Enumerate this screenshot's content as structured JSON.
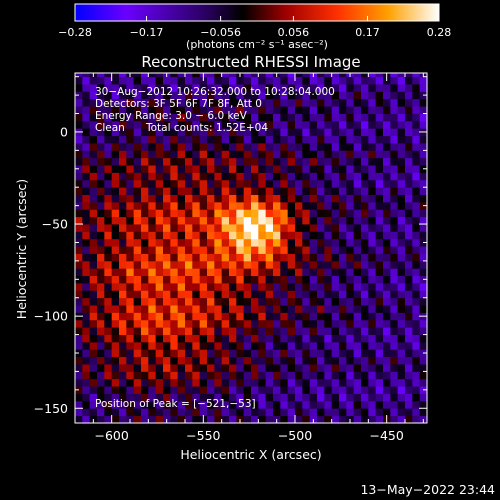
{
  "chart_data": {
    "type": "heatmap",
    "title": "Reconstructed RHESSI Image",
    "xlabel": "Heliocentric X (arcsec)",
    "ylabel": "Heliocentric Y (arcsec)",
    "xlim": [
      -620,
      -428
    ],
    "ylim": [
      -158,
      32
    ],
    "x_ticks": [
      -600,
      -550,
      -500,
      -450
    ],
    "x_tick_labels": [
      "−600",
      "−550",
      "−500",
      "−450"
    ],
    "y_ticks": [
      0,
      -50,
      -100,
      -150
    ],
    "y_tick_labels": [
      "0",
      "−50",
      "−100",
      "−150"
    ],
    "colorbar": {
      "min": -0.28,
      "max": 0.28,
      "ticks": [
        -0.28,
        -0.17,
        -0.056,
        0.056,
        0.17,
        0.28
      ],
      "tick_labels": [
        "−0.28",
        "−0.17",
        "−0.056",
        "0.056",
        "0.17",
        "0.28"
      ],
      "units_label": "(photons cm⁻² s⁻¹ asec⁻²)",
      "colors": [
        "#0000ff",
        "#6a00ff",
        "#2a0060",
        "#000000",
        "#a00000",
        "#ff3000",
        "#ffa000",
        "#ffffff"
      ]
    },
    "peak": {
      "x": -521,
      "y": -53,
      "amplitude": 0.28
    },
    "grid": false,
    "legend": "none"
  },
  "annotations": {
    "time_range": "30−Aug−2012 10:26:32.000 to 10:28:04.000",
    "detectors": "Detectors: 3F 5F 6F 7F 8F, Att 0",
    "energy": "Energy Range: 3.0 − 6.0 keV",
    "method": "Clean",
    "counts": "Total counts: 1.52E+04",
    "peak_position": "Position of Peak = [−521,−53]"
  },
  "footer": {
    "timestamp": "13−May−2022 23:44"
  }
}
